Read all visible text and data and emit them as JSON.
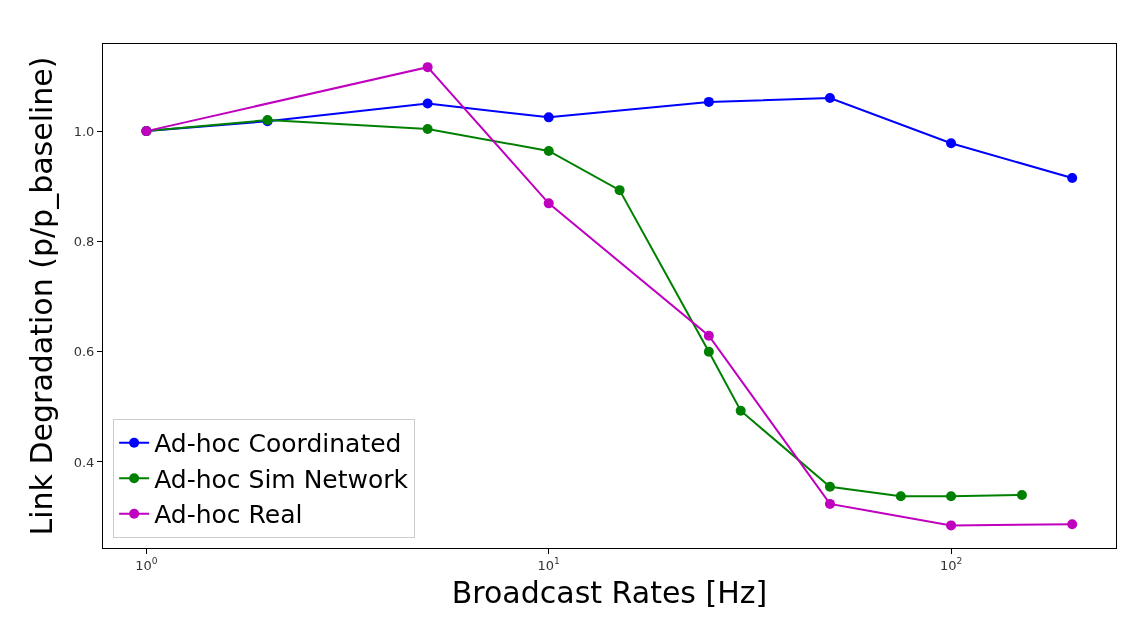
{
  "chart_data": {
    "type": "line",
    "xlabel": "Broadcast Rates [Hz]",
    "ylabel": "Link Degradation (p/p_baseline)",
    "log": "x",
    "grid": false,
    "legend": "bottom left",
    "marker": "circle",
    "line_style": "solid",
    "xlim": [
      0.78,
      257
    ],
    "xticks": [
      {
        "value": 1,
        "label": "10$^{0}$"
      },
      {
        "value": 10,
        "label": "10$^{1}$"
      },
      {
        "value": 100,
        "label": "10$^{2}$"
      }
    ],
    "ylim": [
      0.244,
      1.158
    ],
    "yticks": [
      0.4,
      0.6,
      0.8,
      {
        "value": 1,
        "label": "1.0"
      }
    ],
    "series": [
      {
        "name": "Ad-hoc Coordinated",
        "color": "#0000ff",
        "x": [
          1,
          2,
          5,
          10,
          25,
          50,
          100,
          200
        ],
        "values": [
          1.0,
          1.018,
          1.05,
          1.025,
          1.053,
          1.06,
          0.978,
          0.915
        ]
      },
      {
        "name": "Ad-hoc Sim Network",
        "color": "#008000",
        "x": [
          1,
          2,
          5,
          10,
          15,
          25,
          30,
          50,
          75,
          100,
          150
        ],
        "values": [
          1.0,
          1.02,
          1.004,
          0.964,
          0.893,
          0.6,
          0.493,
          0.355,
          0.338,
          0.338,
          0.34
        ]
      },
      {
        "name": "Ad-hoc Real",
        "color": "#bf00bf",
        "x": [
          1,
          5,
          10,
          25,
          50,
          100,
          200
        ],
        "values": [
          1.0,
          1.116,
          0.869,
          0.629,
          0.324,
          0.285,
          0.287
        ]
      }
    ]
  }
}
